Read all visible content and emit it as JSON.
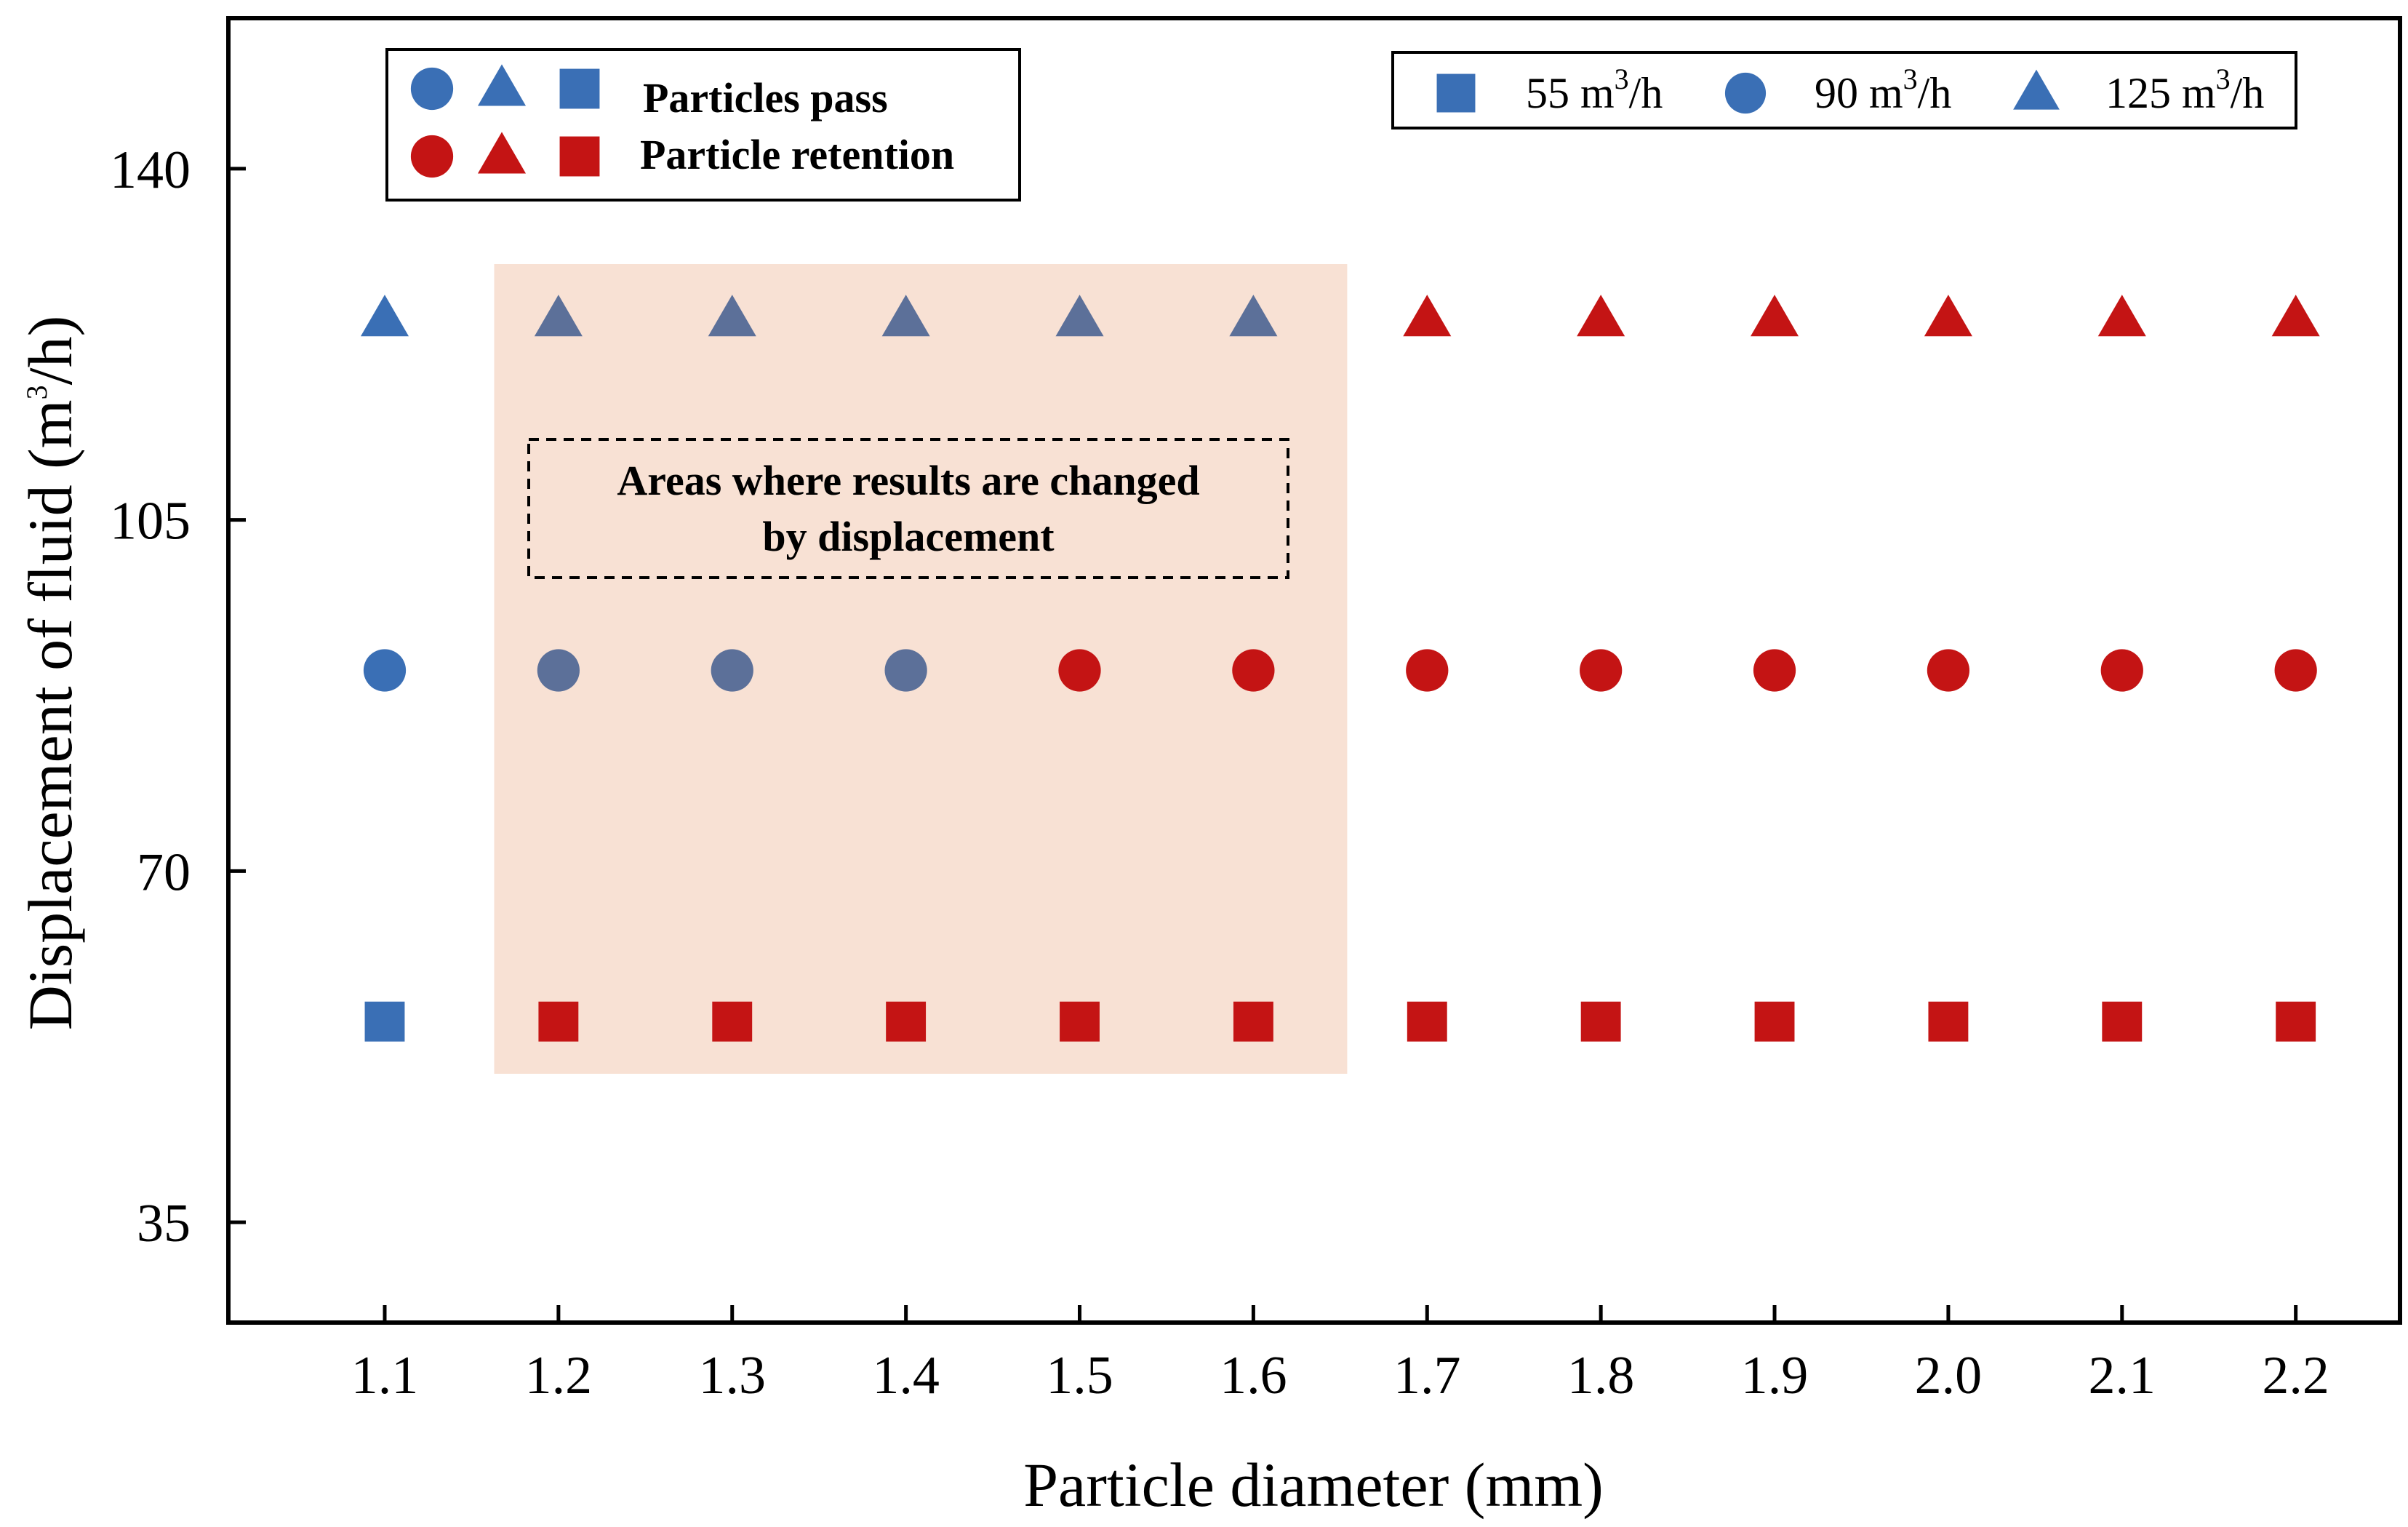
{
  "chart_data": {
    "type": "scatter",
    "xlabel": "Particle diameter (mm)",
    "ylabel_main": "Displacement of fluid (m",
    "ylabel_sup": "3",
    "ylabel_tail": "/h)",
    "x_ticks": [
      "1.1",
      "1.2",
      "1.3",
      "1.4",
      "1.5",
      "1.6",
      "1.7",
      "1.8",
      "1.9",
      "2.0",
      "2.1",
      "2.2"
    ],
    "x_values": [
      1.1,
      1.2,
      1.3,
      1.4,
      1.5,
      1.6,
      1.7,
      1.8,
      1.9,
      2.0,
      2.1,
      2.2
    ],
    "y_ticks": [
      35,
      70,
      105,
      140
    ],
    "y_tick_labels": [
      "35",
      "70",
      "105",
      "140"
    ],
    "xlim": [
      1.01,
      2.26
    ],
    "ylim": [
      25,
      155
    ],
    "grid": false,
    "colors": {
      "pass": "#3a6fb5",
      "pass_in_region": "#5c7099",
      "retention": "#c41414",
      "region": "#f8e1d4"
    },
    "series": [
      {
        "name": "55 m3/h",
        "flow": 55,
        "marker": "square",
        "outcome": [
          "pass",
          "retention",
          "retention",
          "retention",
          "retention",
          "retention",
          "retention",
          "retention",
          "retention",
          "retention",
          "retention",
          "retention"
        ]
      },
      {
        "name": "90 m3/h",
        "flow": 90,
        "marker": "circle",
        "outcome": [
          "pass",
          "pass",
          "pass",
          "pass",
          "retention",
          "retention",
          "retention",
          "retention",
          "retention",
          "retention",
          "retention",
          "retention"
        ]
      },
      {
        "name": "125 m3/h",
        "flow": 125,
        "marker": "triangle",
        "outcome": [
          "pass",
          "pass",
          "pass",
          "pass",
          "pass",
          "pass",
          "retention",
          "retention",
          "retention",
          "retention",
          "retention",
          "retention"
        ]
      }
    ],
    "highlight_region": {
      "x_from": 1.2,
      "x_to": 1.6,
      "label_line1": "Areas where results are changed",
      "label_line2": "by displacement"
    },
    "legend_outcome": {
      "pass_label": "Particles pass",
      "retention_label": "Particle retention"
    },
    "legend_flow": [
      {
        "marker": "square",
        "value": "55 m",
        "sup": "3",
        "tail": "/h"
      },
      {
        "marker": "circle",
        "value": "90 m",
        "sup": "3",
        "tail": "/h"
      },
      {
        "marker": "triangle",
        "value": "125 m",
        "sup": "3",
        "tail": "/h"
      }
    ]
  }
}
